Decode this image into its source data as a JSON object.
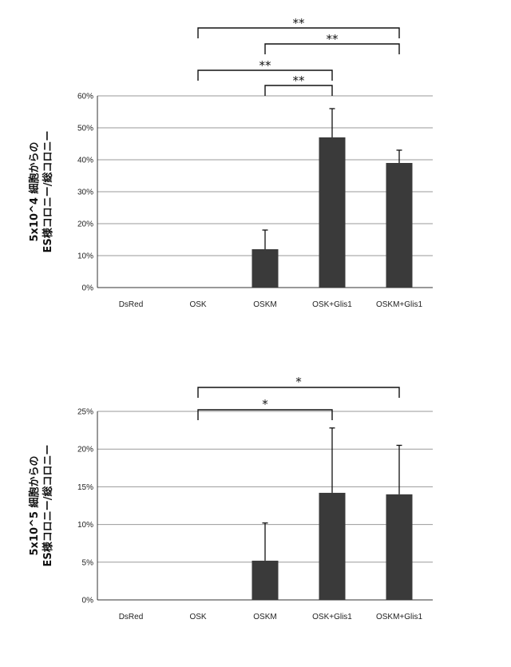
{
  "chart_data": [
    {
      "type": "bar",
      "categories": [
        "DsRed",
        "OSK",
        "OSKM",
        "OSK+Glis1",
        "OSKM+Glis1"
      ],
      "values": [
        0,
        0,
        12,
        47,
        39
      ],
      "errors": [
        0,
        0,
        6,
        9,
        4
      ],
      "ylabel": "5x10^4 細胞からの\nES様コロニー/総コロニー",
      "ylim": [
        0,
        60
      ],
      "yticks": [
        "0%",
        "10%",
        "20%",
        "30%",
        "40%",
        "50%",
        "60%"
      ],
      "grid": true,
      "bar_color": "#3a3a3a",
      "significance": [
        {
          "from": "OSK",
          "to": "OSKM+Glis1",
          "label": "**"
        },
        {
          "from": "OSKM",
          "to": "OSKM+Glis1",
          "label": "**"
        },
        {
          "from": "OSK",
          "to": "OSK+Glis1",
          "label": "**"
        },
        {
          "from": "OSKM",
          "to": "OSK+Glis1",
          "label": "**"
        }
      ]
    },
    {
      "type": "bar",
      "categories": [
        "DsRed",
        "OSK",
        "OSKM",
        "OSK+Glis1",
        "OSKM+Glis1"
      ],
      "values": [
        0,
        0,
        5.2,
        14.2,
        14.0
      ],
      "errors": [
        0,
        0,
        5.0,
        8.6,
        6.5
      ],
      "ylabel": "5x10^5 細胞からの\nES様コロニー/総コロニー",
      "ylim": [
        0,
        25
      ],
      "yticks": [
        "0%",
        "5%",
        "10%",
        "15%",
        "20%",
        "25%"
      ],
      "grid": true,
      "bar_color": "#3a3a3a",
      "significance": [
        {
          "from": "OSK",
          "to": "OSKM+Glis1",
          "label": "*"
        },
        {
          "from": "OSK",
          "to": "OSK+Glis1",
          "label": "*"
        }
      ]
    }
  ]
}
